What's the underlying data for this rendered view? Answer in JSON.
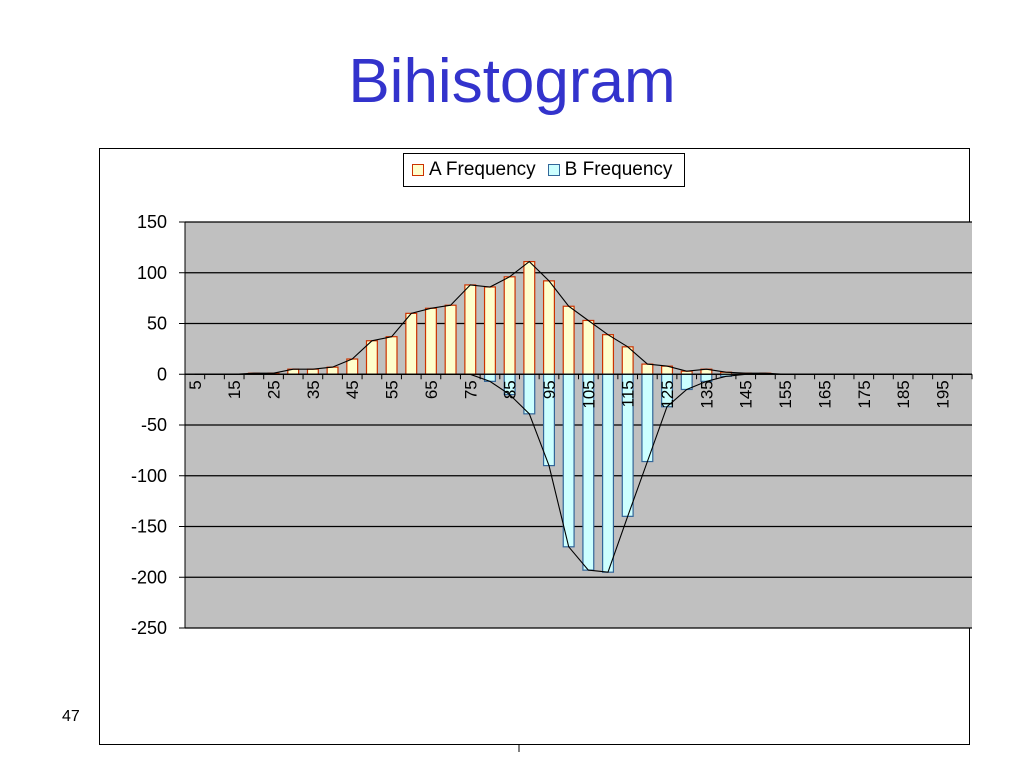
{
  "slide": {
    "title": "Bihistogram",
    "page_number": "47"
  },
  "chart_data": {
    "type": "bar",
    "title": "",
    "xlabel": "",
    "ylabel": "",
    "ylim": [
      -250,
      150
    ],
    "yticks": [
      150,
      100,
      50,
      0,
      -50,
      -100,
      -150,
      -200,
      -250
    ],
    "grid": true,
    "legend_position": "top",
    "categories": [
      5,
      10,
      15,
      20,
      25,
      30,
      35,
      40,
      45,
      50,
      55,
      60,
      65,
      70,
      75,
      80,
      85,
      90,
      95,
      100,
      105,
      110,
      115,
      120,
      125,
      130,
      135,
      140,
      145,
      150,
      155,
      160,
      165,
      170,
      175,
      180,
      185,
      190,
      195,
      200
    ],
    "tick_labels": [
      "5",
      "15",
      "25",
      "35",
      "45",
      "55",
      "65",
      "75",
      "85",
      "95",
      "105",
      "115",
      "125",
      "135",
      "145",
      "155",
      "165",
      "175",
      "185",
      "195"
    ],
    "series": [
      {
        "name": "A Frequency",
        "colors": {
          "fill": "#ffffcc",
          "stroke": "#cc3300"
        },
        "values": [
          0,
          0,
          0,
          1,
          1,
          5,
          5,
          7,
          15,
          33,
          37,
          60,
          65,
          68,
          88,
          86,
          96,
          111,
          92,
          67,
          53,
          39,
          27,
          10,
          8,
          3,
          5,
          2,
          1,
          1,
          0,
          0,
          0,
          0,
          0,
          0,
          0,
          0,
          0,
          0
        ]
      },
      {
        "name": "B Frequency",
        "colors": {
          "fill": "#ccffff",
          "stroke": "#336699"
        },
        "values": [
          0,
          0,
          0,
          0,
          0,
          0,
          0,
          0,
          0,
          0,
          0,
          0,
          0,
          0,
          0,
          -7,
          -20,
          -39,
          -90,
          -170,
          -193,
          -195,
          -140,
          -86,
          -32,
          -15,
          -7,
          -2,
          0,
          0,
          0,
          0,
          0,
          0,
          0,
          0,
          0,
          0,
          0,
          0
        ]
      }
    ],
    "plot_background": "#c0c0c0"
  }
}
